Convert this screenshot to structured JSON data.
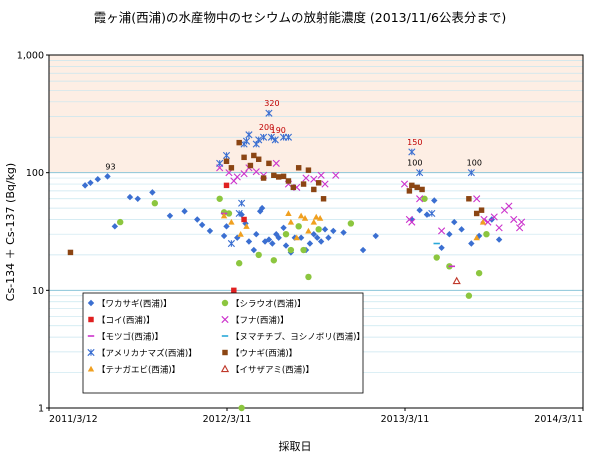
{
  "chart_data": {
    "type": "scatter",
    "title": "霞ヶ浦(西浦)の水産物中のセシウムの放射能濃度 (2013/11/6公表分まで)",
    "xlabel": "採取日",
    "ylabel": "Cs-134 ＋ Cs-137 (Bq/kg)",
    "x_scale": "date",
    "y_scale": "log",
    "xlim": [
      "2011-03-12",
      "2014-03-11"
    ],
    "ylim": [
      1,
      1000
    ],
    "x_ticks": [
      "2011/3/12",
      "2012/3/11",
      "2013/3/11",
      "2014/3/11"
    ],
    "y_ticks": [
      "1",
      "10",
      "100",
      "1,000"
    ],
    "grid": true,
    "limit_band": {
      "from": 100,
      "to": 1000,
      "color": "#fdeee4"
    },
    "legend_position": "lower-left",
    "series": [
      {
        "name": "【ワカサギ(西浦)】",
        "marker": "diamond",
        "color": "#3b6fd1",
        "points": [
          [
            "2011-05-25",
            78
          ],
          [
            "2011-06-05",
            82
          ],
          [
            "2011-06-20",
            88
          ],
          [
            "2011-07-10",
            93
          ],
          [
            "2011-07-25",
            35
          ],
          [
            "2011-08-25",
            62
          ],
          [
            "2011-09-10",
            60
          ],
          [
            "2011-10-10",
            68
          ],
          [
            "2011-11-15",
            43
          ],
          [
            "2011-12-15",
            47
          ],
          [
            "2012-01-10",
            40
          ],
          [
            "2012-01-20",
            36
          ],
          [
            "2012-02-05",
            32
          ],
          [
            "2012-03-05",
            29
          ],
          [
            "2012-03-10",
            35
          ],
          [
            "2012-04-01",
            28
          ],
          [
            "2012-04-10",
            44
          ],
          [
            "2012-04-18",
            37
          ],
          [
            "2012-04-25",
            26
          ],
          [
            "2012-05-05",
            22
          ],
          [
            "2012-05-10",
            30
          ],
          [
            "2012-05-18",
            47
          ],
          [
            "2012-05-22",
            50
          ],
          [
            "2012-05-28",
            26
          ],
          [
            "2012-06-05",
            27
          ],
          [
            "2012-06-12",
            25
          ],
          [
            "2012-06-20",
            30
          ],
          [
            "2012-06-25",
            28
          ],
          [
            "2012-07-05",
            34
          ],
          [
            "2012-07-10",
            24
          ],
          [
            "2012-07-20",
            21
          ],
          [
            "2012-07-28",
            28
          ],
          [
            "2012-08-10",
            28
          ],
          [
            "2012-08-20",
            22
          ],
          [
            "2012-08-28",
            25
          ],
          [
            "2012-09-05",
            30
          ],
          [
            "2012-09-12",
            28
          ],
          [
            "2012-09-20",
            26
          ],
          [
            "2012-09-28",
            33
          ],
          [
            "2012-10-05",
            28
          ],
          [
            "2012-10-15",
            32
          ],
          [
            "2012-11-05",
            31
          ],
          [
            "2012-12-15",
            22
          ],
          [
            "2013-01-10",
            29
          ],
          [
            "2013-03-25",
            40
          ],
          [
            "2013-04-10",
            48
          ],
          [
            "2013-04-25",
            44
          ],
          [
            "2013-05-10",
            58
          ],
          [
            "2013-05-25",
            23
          ],
          [
            "2013-06-10",
            30
          ],
          [
            "2013-06-20",
            38
          ],
          [
            "2013-07-05",
            33
          ],
          [
            "2013-07-25",
            25
          ],
          [
            "2013-08-10",
            29
          ],
          [
            "2013-09-05",
            40
          ],
          [
            "2013-09-20",
            27
          ]
        ]
      },
      {
        "name": "【シラウオ(西浦)】",
        "marker": "circle",
        "color": "#8cc63f",
        "points": [
          [
            "2011-08-05",
            38
          ],
          [
            "2011-10-15",
            55
          ],
          [
            "2012-02-25",
            60
          ],
          [
            "2012-03-05",
            46
          ],
          [
            "2012-03-15",
            45
          ],
          [
            "2012-04-05",
            17
          ],
          [
            "2012-05-15",
            20
          ],
          [
            "2012-06-15",
            18
          ],
          [
            "2012-07-10",
            30
          ],
          [
            "2012-07-20",
            22
          ],
          [
            "2012-08-05",
            35
          ],
          [
            "2012-08-15",
            22
          ],
          [
            "2012-08-25",
            13
          ],
          [
            "2012-09-15",
            33
          ],
          [
            "2012-11-20",
            37
          ],
          [
            "2013-04-20",
            60
          ],
          [
            "2013-05-15",
            19
          ],
          [
            "2013-06-10",
            16
          ],
          [
            "2013-07-20",
            9
          ],
          [
            "2013-08-10",
            14
          ],
          [
            "2013-08-25",
            30
          ],
          [
            "2012-04-10",
            1
          ]
        ]
      },
      {
        "name": "【コイ(西浦)】",
        "marker": "square",
        "color": "#e02020",
        "points": [
          [
            "2012-03-10",
            78
          ],
          [
            "2012-03-25",
            10
          ],
          [
            "2012-04-15",
            40
          ]
        ]
      },
      {
        "name": "【フナ(西浦)】",
        "marker": "x",
        "color": "#cc33cc",
        "points": [
          [
            "2012-02-25",
            110
          ],
          [
            "2012-03-15",
            100
          ],
          [
            "2012-03-25",
            85
          ],
          [
            "2012-04-01",
            92
          ],
          [
            "2012-04-15",
            98
          ],
          [
            "2012-04-25",
            110
          ],
          [
            "2012-05-10",
            102
          ],
          [
            "2012-05-25",
            95
          ],
          [
            "2012-06-20",
            120
          ],
          [
            "2012-07-15",
            80
          ],
          [
            "2012-08-01",
            75
          ],
          [
            "2012-08-20",
            90
          ],
          [
            "2012-09-05",
            88
          ],
          [
            "2012-09-20",
            95
          ],
          [
            "2012-09-28",
            80
          ],
          [
            "2012-10-20",
            95
          ],
          [
            "2013-03-10",
            80
          ],
          [
            "2013-03-20",
            40
          ],
          [
            "2013-03-25",
            38
          ],
          [
            "2013-04-10",
            60
          ],
          [
            "2013-05-25",
            32
          ],
          [
            "2013-08-05",
            60
          ],
          [
            "2013-08-20",
            40
          ],
          [
            "2013-08-28",
            38
          ],
          [
            "2013-09-10",
            42
          ],
          [
            "2013-09-20",
            34
          ],
          [
            "2013-10-01",
            48
          ],
          [
            "2013-10-10",
            52
          ],
          [
            "2013-10-20",
            40
          ],
          [
            "2013-11-01",
            34
          ],
          [
            "2013-11-05",
            38
          ]
        ]
      },
      {
        "name": "【モツゴ(西浦)】",
        "marker": "dash",
        "color": "#cc33cc",
        "points": [
          [
            "2013-06-15",
            16
          ],
          [
            "2012-03-05",
            45
          ]
        ]
      },
      {
        "name": "【ヌマチチブ、ヨシノボリ(西浦)】",
        "marker": "dash",
        "color": "#29a8d9",
        "points": [
          [
            "2013-05-15",
            25
          ]
        ]
      },
      {
        "name": "【アメリカナマズ(西浦)】",
        "marker": "asterisk",
        "color": "#3b6fd1",
        "points": [
          [
            "2012-02-25",
            120
          ],
          [
            "2012-03-10",
            140
          ],
          [
            "2012-04-15",
            175
          ],
          [
            "2012-04-20",
            185
          ],
          [
            "2012-04-25",
            210
          ],
          [
            "2012-05-10",
            175
          ],
          [
            "2012-05-15",
            190
          ],
          [
            "2012-05-25",
            200
          ],
          [
            "2012-06-05",
            320
          ],
          [
            "2012-06-10",
            200
          ],
          [
            "2012-06-18",
            190
          ],
          [
            "2012-07-05",
            200
          ],
          [
            "2012-07-15",
            200
          ],
          [
            "2012-03-20",
            25
          ],
          [
            "2012-04-05",
            45
          ],
          [
            "2012-04-10",
            55
          ],
          [
            "2013-03-25",
            150
          ],
          [
            "2013-04-10",
            100
          ],
          [
            "2013-05-05",
            45
          ],
          [
            "2013-07-25",
            100
          ]
        ]
      },
      {
        "name": "【ウナギ(西浦)】",
        "marker": "square",
        "color": "#8b4513",
        "points": [
          [
            "2011-04-25",
            21
          ],
          [
            "2012-03-10",
            125
          ],
          [
            "2012-03-20",
            110
          ],
          [
            "2012-04-05",
            180
          ],
          [
            "2012-04-15",
            135
          ],
          [
            "2012-04-28",
            115
          ],
          [
            "2012-05-05",
            140
          ],
          [
            "2012-05-15",
            130
          ],
          [
            "2012-05-25",
            90
          ],
          [
            "2012-06-05",
            120
          ],
          [
            "2012-06-15",
            95
          ],
          [
            "2012-06-25",
            92
          ],
          [
            "2012-07-05",
            93
          ],
          [
            "2012-07-15",
            85
          ],
          [
            "2012-07-25",
            75
          ],
          [
            "2012-08-05",
            110
          ],
          [
            "2012-08-15",
            80
          ],
          [
            "2012-08-25",
            105
          ],
          [
            "2012-09-05",
            72
          ],
          [
            "2012-09-15",
            82
          ],
          [
            "2012-09-25",
            60
          ],
          [
            "2013-03-20",
            70
          ],
          [
            "2013-03-25",
            78
          ],
          [
            "2013-04-05",
            75
          ],
          [
            "2013-04-15",
            72
          ],
          [
            "2013-07-20",
            60
          ],
          [
            "2013-08-05",
            45
          ],
          [
            "2013-08-15",
            48
          ]
        ]
      },
      {
        "name": "【テナガエビ(西浦)】",
        "marker": "triangle",
        "color": "#f0a020",
        "points": [
          [
            "2012-03-05",
            43
          ],
          [
            "2012-03-20",
            38
          ],
          [
            "2012-04-08",
            30
          ],
          [
            "2012-04-20",
            35
          ],
          [
            "2012-07-15",
            45
          ],
          [
            "2012-07-20",
            38
          ],
          [
            "2012-08-01",
            28
          ],
          [
            "2012-08-10",
            43
          ],
          [
            "2012-08-18",
            41
          ],
          [
            "2012-08-25",
            32
          ],
          [
            "2012-09-05",
            38
          ],
          [
            "2012-09-10",
            42
          ],
          [
            "2012-09-18",
            41
          ],
          [
            "2013-08-05",
            28
          ],
          [
            "2013-08-18",
            38
          ]
        ]
      },
      {
        "name": "【イサザアミ(西浦)】",
        "marker": "triangle-open",
        "color": "#c0392b",
        "points": [
          [
            "2013-06-25",
            12
          ]
        ]
      }
    ],
    "annotations": [
      {
        "text": "93",
        "x": "2011-07-10",
        "y": 93,
        "color": "#000000"
      },
      {
        "text": "320",
        "x": "2012-06-05",
        "y": 320,
        "color": "#c00000"
      },
      {
        "text": "200",
        "x": "2012-05-25",
        "y": 200,
        "color": "#c00000"
      },
      {
        "text": "190",
        "x": "2012-06-18",
        "y": 190,
        "color": "#c00000"
      },
      {
        "text": "100",
        "x": "2013-03-25",
        "y": 100,
        "color": "#000000"
      },
      {
        "text": "150",
        "x": "2013-03-25",
        "y": 150,
        "color": "#c00000"
      },
      {
        "text": "100",
        "x": "2013-07-25",
        "y": 100,
        "color": "#000000"
      }
    ]
  }
}
